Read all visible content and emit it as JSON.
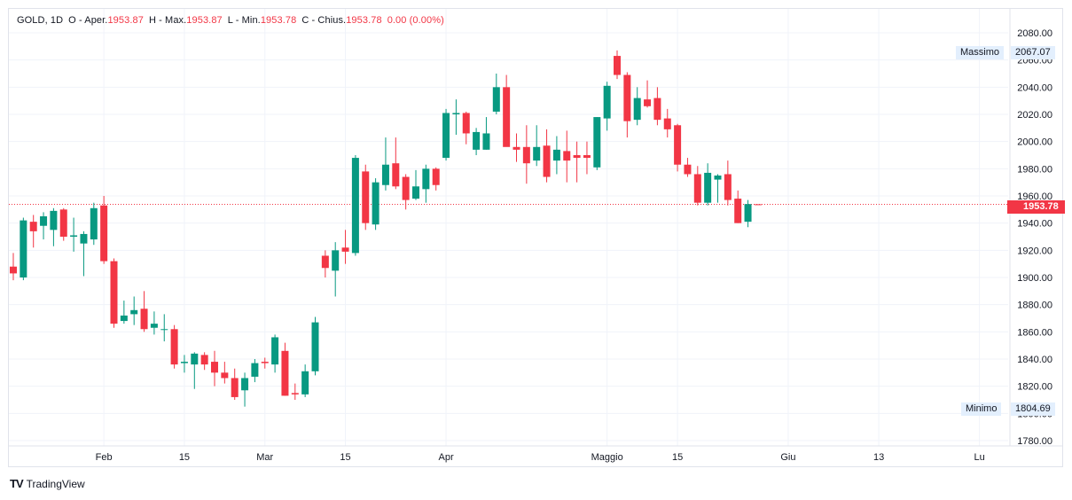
{
  "legend": {
    "symbol": "GOLD",
    "interval": "1D",
    "open_label": "O - Aper.",
    "open_value": "1953.87",
    "high_label": "H - Max.",
    "high_value": "1953.87",
    "low_label": "L - Min.",
    "low_value": "1953.78",
    "close_label": "C - Chius.",
    "close_value": "1953.78",
    "change_value": "0.00 (0.00%)"
  },
  "badges": {
    "high_label": "Massimo",
    "high_value": "2067.07",
    "low_label": "Minimo",
    "low_value": "1804.69",
    "last_price": "1953.78"
  },
  "brand": {
    "logo": "TV",
    "name": "TradingView"
  },
  "colors": {
    "up": "#089981",
    "down": "#f23645",
    "grid": "#f0f3fa",
    "axis_text": "#131722"
  },
  "chart_data": {
    "type": "candlestick",
    "yaxis": {
      "ticks": [
        1780,
        1800,
        1820,
        1840,
        1860,
        1880,
        1900,
        1920,
        1940,
        1960,
        1980,
        2000,
        2020,
        2040,
        2060,
        2080
      ],
      "ylim": [
        1776,
        2088
      ],
      "position": "right"
    },
    "xaxis": {
      "ticks": [
        {
          "label": "Feb",
          "i": 9
        },
        {
          "label": "15",
          "i": 17
        },
        {
          "label": "Mar",
          "i": 25
        },
        {
          "label": "15",
          "i": 33
        },
        {
          "label": "Apr",
          "i": 43
        },
        {
          "label": "Maggio",
          "i": 59
        },
        {
          "label": "15",
          "i": 66
        },
        {
          "label": "Giu",
          "i": 77
        },
        {
          "label": "13",
          "i": 86
        },
        {
          "label": "Lu",
          "i": 96
        }
      ]
    },
    "last_price": 1953.78,
    "high": 2067.07,
    "low": 1804.69,
    "candles": [
      {
        "o": 1908,
        "h": 1918,
        "l": 1898,
        "c": 1903
      },
      {
        "o": 1900,
        "h": 1944,
        "l": 1898,
        "c": 1942
      },
      {
        "o": 1941,
        "h": 1946,
        "l": 1922,
        "c": 1934
      },
      {
        "o": 1938,
        "h": 1948,
        "l": 1928,
        "c": 1945
      },
      {
        "o": 1935,
        "h": 1951,
        "l": 1923,
        "c": 1949
      },
      {
        "o": 1950,
        "h": 1951,
        "l": 1927,
        "c": 1930
      },
      {
        "o": 1930,
        "h": 1944,
        "l": 1919,
        "c": 1931
      },
      {
        "o": 1925,
        "h": 1934,
        "l": 1901,
        "c": 1932
      },
      {
        "o": 1928,
        "h": 1955,
        "l": 1924,
        "c": 1951
      },
      {
        "o": 1953,
        "h": 1960,
        "l": 1910,
        "c": 1912
      },
      {
        "o": 1912,
        "h": 1914,
        "l": 1863,
        "c": 1866
      },
      {
        "o": 1868,
        "h": 1883,
        "l": 1866,
        "c": 1872
      },
      {
        "o": 1873,
        "h": 1886,
        "l": 1865,
        "c": 1876
      },
      {
        "o": 1877,
        "h": 1890,
        "l": 1860,
        "c": 1862
      },
      {
        "o": 1863,
        "h": 1875,
        "l": 1858,
        "c": 1866
      },
      {
        "o": 1862,
        "h": 1873,
        "l": 1853,
        "c": 1862
      },
      {
        "o": 1862,
        "h": 1865,
        "l": 1833,
        "c": 1836
      },
      {
        "o": 1837,
        "h": 1843,
        "l": 1830,
        "c": 1838
      },
      {
        "o": 1836,
        "h": 1845,
        "l": 1818,
        "c": 1844
      },
      {
        "o": 1843,
        "h": 1845,
        "l": 1832,
        "c": 1836
      },
      {
        "o": 1838,
        "h": 1846,
        "l": 1820,
        "c": 1830
      },
      {
        "o": 1830,
        "h": 1838,
        "l": 1822,
        "c": 1826
      },
      {
        "o": 1826,
        "h": 1833,
        "l": 1810,
        "c": 1812
      },
      {
        "o": 1817,
        "h": 1830,
        "l": 1805,
        "c": 1826
      },
      {
        "o": 1827,
        "h": 1840,
        "l": 1823,
        "c": 1837
      },
      {
        "o": 1838,
        "h": 1841,
        "l": 1833,
        "c": 1837
      },
      {
        "o": 1836,
        "h": 1858,
        "l": 1830,
        "c": 1856
      },
      {
        "o": 1846,
        "h": 1852,
        "l": 1813,
        "c": 1813
      },
      {
        "o": 1815,
        "h": 1822,
        "l": 1810,
        "c": 1814
      },
      {
        "o": 1814,
        "h": 1836,
        "l": 1812,
        "c": 1831
      },
      {
        "o": 1831,
        "h": 1871,
        "l": 1828,
        "c": 1867
      },
      {
        "o": 1916,
        "h": 1920,
        "l": 1900,
        "c": 1907
      },
      {
        "o": 1905,
        "h": 1926,
        "l": 1886,
        "c": 1920
      },
      {
        "o": 1922,
        "h": 1935,
        "l": 1910,
        "c": 1919
      },
      {
        "o": 1918,
        "h": 1990,
        "l": 1916,
        "c": 1988
      },
      {
        "o": 1978,
        "h": 1983,
        "l": 1935,
        "c": 1940
      },
      {
        "o": 1939,
        "h": 1973,
        "l": 1935,
        "c": 1970
      },
      {
        "o": 1968,
        "h": 2003,
        "l": 1964,
        "c": 1983
      },
      {
        "o": 1984,
        "h": 2003,
        "l": 1965,
        "c": 1967
      },
      {
        "o": 1974,
        "h": 1976,
        "l": 1950,
        "c": 1957
      },
      {
        "o": 1958,
        "h": 1979,
        "l": 1957,
        "c": 1967
      },
      {
        "o": 1965,
        "h": 1983,
        "l": 1955,
        "c": 1980
      },
      {
        "o": 1980,
        "h": 1981,
        "l": 1964,
        "c": 1968
      },
      {
        "o": 1988,
        "h": 2024,
        "l": 1986,
        "c": 2021
      },
      {
        "o": 2020,
        "h": 2031,
        "l": 2005,
        "c": 2021
      },
      {
        "o": 2021,
        "h": 2022,
        "l": 1998,
        "c": 2006
      },
      {
        "o": 1994,
        "h": 2010,
        "l": 1990,
        "c": 2007
      },
      {
        "o": 1994,
        "h": 2018,
        "l": 1994,
        "c": 2006
      },
      {
        "o": 2022,
        "h": 2050,
        "l": 2020,
        "c": 2040
      },
      {
        "o": 2040,
        "h": 2049,
        "l": 1998,
        "c": 1996
      },
      {
        "o": 1996,
        "h": 2006,
        "l": 1985,
        "c": 1994
      },
      {
        "o": 1996,
        "h": 2012,
        "l": 1969,
        "c": 1984
      },
      {
        "o": 1986,
        "h": 2012,
        "l": 1982,
        "c": 1996
      },
      {
        "o": 1997,
        "h": 2009,
        "l": 1970,
        "c": 1974
      },
      {
        "o": 1986,
        "h": 2004,
        "l": 1976,
        "c": 1994
      },
      {
        "o": 1993,
        "h": 2008,
        "l": 1970,
        "c": 1986
      },
      {
        "o": 1990,
        "h": 2000,
        "l": 1970,
        "c": 1988
      },
      {
        "o": 1990,
        "h": 2000,
        "l": 1976,
        "c": 1988
      },
      {
        "o": 1981,
        "h": 2018,
        "l": 1979,
        "c": 2018
      },
      {
        "o": 2017,
        "h": 2044,
        "l": 2008,
        "c": 2041
      },
      {
        "o": 2063,
        "h": 2067,
        "l": 2046,
        "c": 2049
      },
      {
        "o": 2049,
        "h": 2051,
        "l": 2003,
        "c": 2015
      },
      {
        "o": 2016,
        "h": 2040,
        "l": 2012,
        "c": 2032
      },
      {
        "o": 2031,
        "h": 2045,
        "l": 2025,
        "c": 2026
      },
      {
        "o": 2032,
        "h": 2040,
        "l": 2012,
        "c": 2016
      },
      {
        "o": 2017,
        "h": 2024,
        "l": 2003,
        "c": 2009
      },
      {
        "o": 2012,
        "h": 2013,
        "l": 1978,
        "c": 1983
      },
      {
        "o": 1983,
        "h": 1988,
        "l": 1974,
        "c": 1976
      },
      {
        "o": 1976,
        "h": 1982,
        "l": 1953,
        "c": 1955
      },
      {
        "o": 1955,
        "h": 1984,
        "l": 1953,
        "c": 1977
      },
      {
        "o": 1972,
        "h": 1976,
        "l": 1955,
        "c": 1975
      },
      {
        "o": 1976,
        "h": 1986,
        "l": 1953,
        "c": 1957
      },
      {
        "o": 1958,
        "h": 1964,
        "l": 1940,
        "c": 1940
      },
      {
        "o": 1941,
        "h": 1957,
        "l": 1937,
        "c": 1954
      },
      {
        "o": 1953.87,
        "h": 1953.87,
        "l": 1953.78,
        "c": 1953.78
      }
    ]
  }
}
